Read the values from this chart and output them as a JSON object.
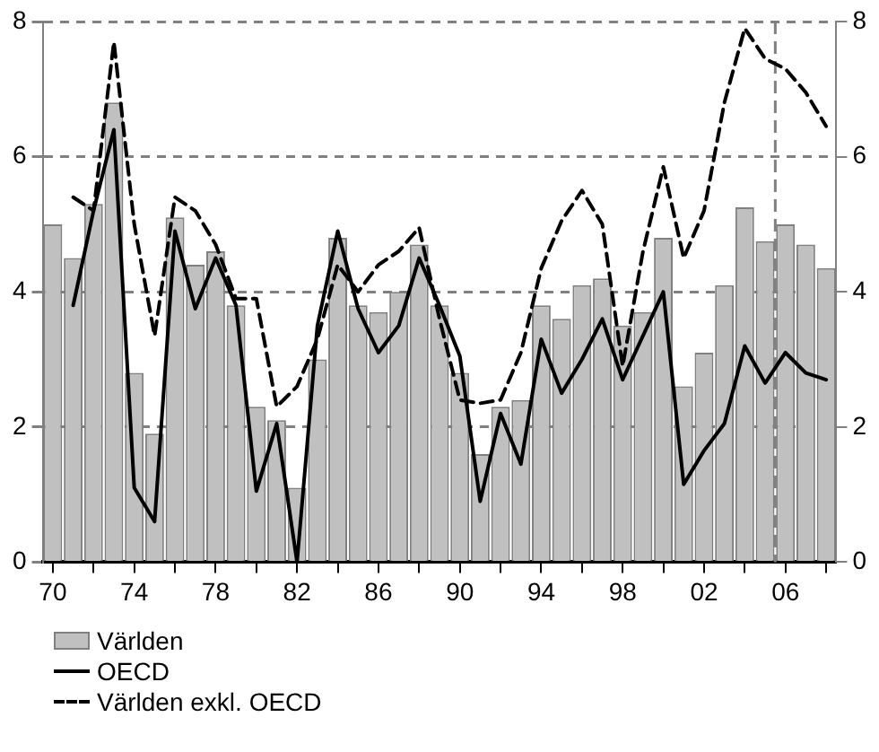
{
  "chart_data": {
    "type": "bar",
    "x": [
      1970,
      1971,
      1972,
      1973,
      1974,
      1975,
      1976,
      1977,
      1978,
      1979,
      1980,
      1981,
      1982,
      1983,
      1984,
      1985,
      1986,
      1987,
      1988,
      1989,
      1990,
      1991,
      1992,
      1993,
      1994,
      1995,
      1996,
      1997,
      1998,
      1999,
      2000,
      2001,
      2002,
      2003,
      2004,
      2005,
      2006,
      2007,
      2008
    ],
    "series": [
      {
        "name": "Världen",
        "color": "#c0c0c0",
        "values": [
          5.0,
          4.5,
          5.3,
          6.8,
          2.8,
          1.9,
          5.1,
          4.4,
          4.6,
          3.8,
          2.3,
          2.1,
          1.1,
          3.0,
          4.8,
          3.8,
          3.7,
          4.0,
          4.7,
          3.8,
          2.8,
          1.6,
          2.3,
          2.4,
          3.8,
          3.6,
          4.1,
          4.2,
          3.5,
          3.7,
          4.8,
          2.6,
          3.1,
          4.1,
          5.25,
          4.75,
          5.0,
          4.7,
          4.35
        ]
      },
      {
        "name": "OECD",
        "type": "line",
        "color": "#000000",
        "line_style": "solid",
        "values": [
          null,
          3.8,
          5.2,
          6.4,
          1.1,
          0.6,
          4.9,
          3.75,
          4.5,
          3.8,
          1.05,
          2.05,
          0.0,
          3.5,
          4.9,
          3.75,
          3.1,
          3.5,
          4.5,
          3.8,
          3.05,
          0.9,
          2.2,
          1.45,
          3.3,
          2.5,
          3.0,
          3.6,
          2.7,
          3.35,
          4.0,
          1.15,
          1.65,
          2.05,
          3.2,
          2.65,
          3.1,
          2.8,
          2.7
        ]
      },
      {
        "name": "Världen exkl. OECD",
        "type": "line",
        "color": "#000000",
        "line_style": "dashed",
        "values": [
          null,
          5.4,
          5.2,
          7.7,
          5.0,
          3.35,
          5.4,
          5.2,
          4.7,
          3.9,
          3.9,
          2.3,
          2.6,
          3.3,
          4.4,
          4.0,
          4.4,
          4.6,
          4.95,
          3.6,
          2.4,
          2.35,
          2.4,
          3.1,
          4.35,
          5.05,
          5.5,
          5.0,
          2.9,
          4.6,
          5.85,
          4.5,
          5.2,
          6.8,
          7.9,
          7.45,
          7.3,
          6.95,
          6.45
        ]
      }
    ],
    "xlim": [
      1969.5,
      2008.5
    ],
    "xticks": [
      {
        "value": 1970,
        "label": "70"
      },
      {
        "value": 1972,
        "label": null
      },
      {
        "value": 1974,
        "label": "74"
      },
      {
        "value": 1976,
        "label": null
      },
      {
        "value": 1978,
        "label": "78"
      },
      {
        "value": 1980,
        "label": null
      },
      {
        "value": 1982,
        "label": "82"
      },
      {
        "value": 1984,
        "label": null
      },
      {
        "value": 1986,
        "label": "86"
      },
      {
        "value": 1988,
        "label": null
      },
      {
        "value": 1990,
        "label": "90"
      },
      {
        "value": 1992,
        "label": null
      },
      {
        "value": 1994,
        "label": "94"
      },
      {
        "value": 1996,
        "label": null
      },
      {
        "value": 1998,
        "label": "98"
      },
      {
        "value": 2000,
        "label": null
      },
      {
        "value": 2002,
        "label": "02"
      },
      {
        "value": 2004,
        "label": null
      },
      {
        "value": 2006,
        "label": "06"
      },
      {
        "value": 2008,
        "label": null
      }
    ],
    "ylim": [
      0,
      8
    ],
    "yticks": [
      0,
      2,
      4,
      6,
      8
    ],
    "y2lim": [
      0,
      8
    ],
    "y2ticks": [
      0,
      2,
      4,
      6,
      8
    ],
    "ref_lines": [
      {
        "axis": "x",
        "value": 2005.5,
        "color": "#808080",
        "line_style": "dashed"
      }
    ],
    "grid": "y",
    "legend": "bottom"
  }
}
